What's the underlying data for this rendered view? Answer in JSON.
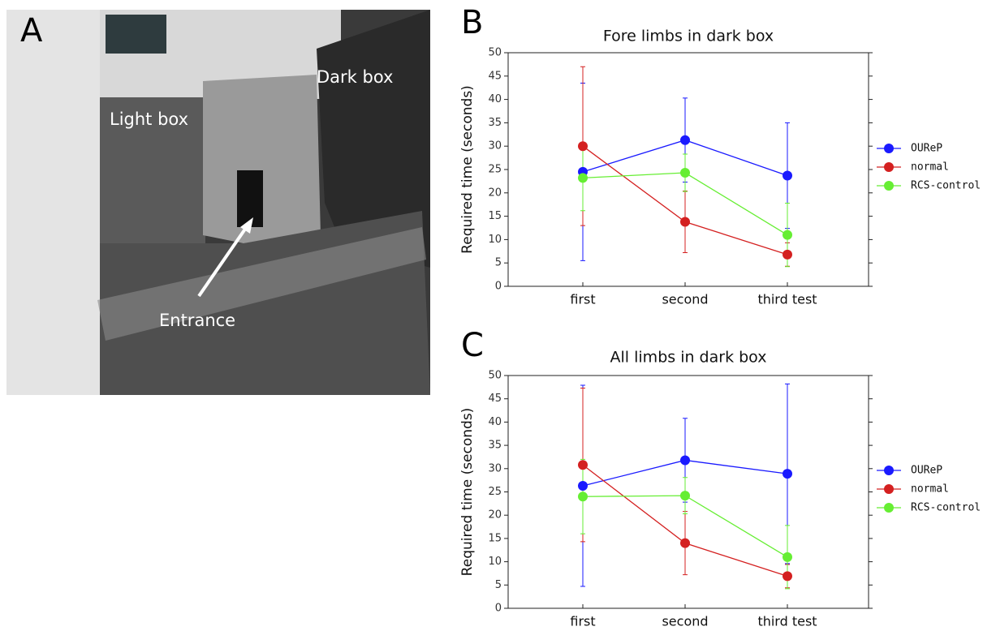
{
  "photo": {
    "panel_label": "A",
    "labels": [
      "Light box",
      "Dark box",
      "Entrance"
    ]
  },
  "chart_data": [
    {
      "type": "line",
      "panel_label": "B",
      "title": "Fore limbs in dark box",
      "y_label": "Required time (seconds)",
      "categories": [
        "first",
        "second",
        "third test"
      ],
      "ylim": [
        0,
        50
      ],
      "yticks": [
        0,
        5,
        10,
        15,
        20,
        25,
        30,
        35,
        40,
        45,
        50
      ],
      "series": [
        {
          "name": "OUReP",
          "color": "#1a1aff",
          "values": [
            24.5,
            31.3,
            23.7
          ],
          "errors": [
            19,
            9,
            11.3
          ]
        },
        {
          "name": "normal",
          "color": "#d42020",
          "values": [
            30,
            13.8,
            6.8
          ],
          "errors": [
            17,
            6.6,
            2.5
          ]
        },
        {
          "name": "RCS-control",
          "color": "#66ee33",
          "values": [
            23.2,
            24.3,
            11
          ],
          "errors": [
            7,
            4,
            6.8
          ]
        }
      ]
    },
    {
      "type": "line",
      "panel_label": "C",
      "title": "All limbs in dark box",
      "y_label": "Required time (seconds)",
      "categories": [
        "first",
        "second",
        "third test"
      ],
      "ylim": [
        0,
        50
      ],
      "yticks": [
        0,
        5,
        10,
        15,
        20,
        25,
        30,
        35,
        40,
        45,
        50
      ],
      "series": [
        {
          "name": "OUReP",
          "color": "#1a1aff",
          "values": [
            26.3,
            31.8,
            28.9
          ],
          "errors": [
            21.6,
            9,
            19.3
          ]
        },
        {
          "name": "normal",
          "color": "#d42020",
          "values": [
            30.8,
            14,
            6.9
          ],
          "errors": [
            16.5,
            6.8,
            2.5
          ]
        },
        {
          "name": "RCS-control",
          "color": "#66ee33",
          "values": [
            24,
            24.2,
            11
          ],
          "errors": [
            8,
            3.9,
            6.8
          ]
        }
      ]
    }
  ]
}
